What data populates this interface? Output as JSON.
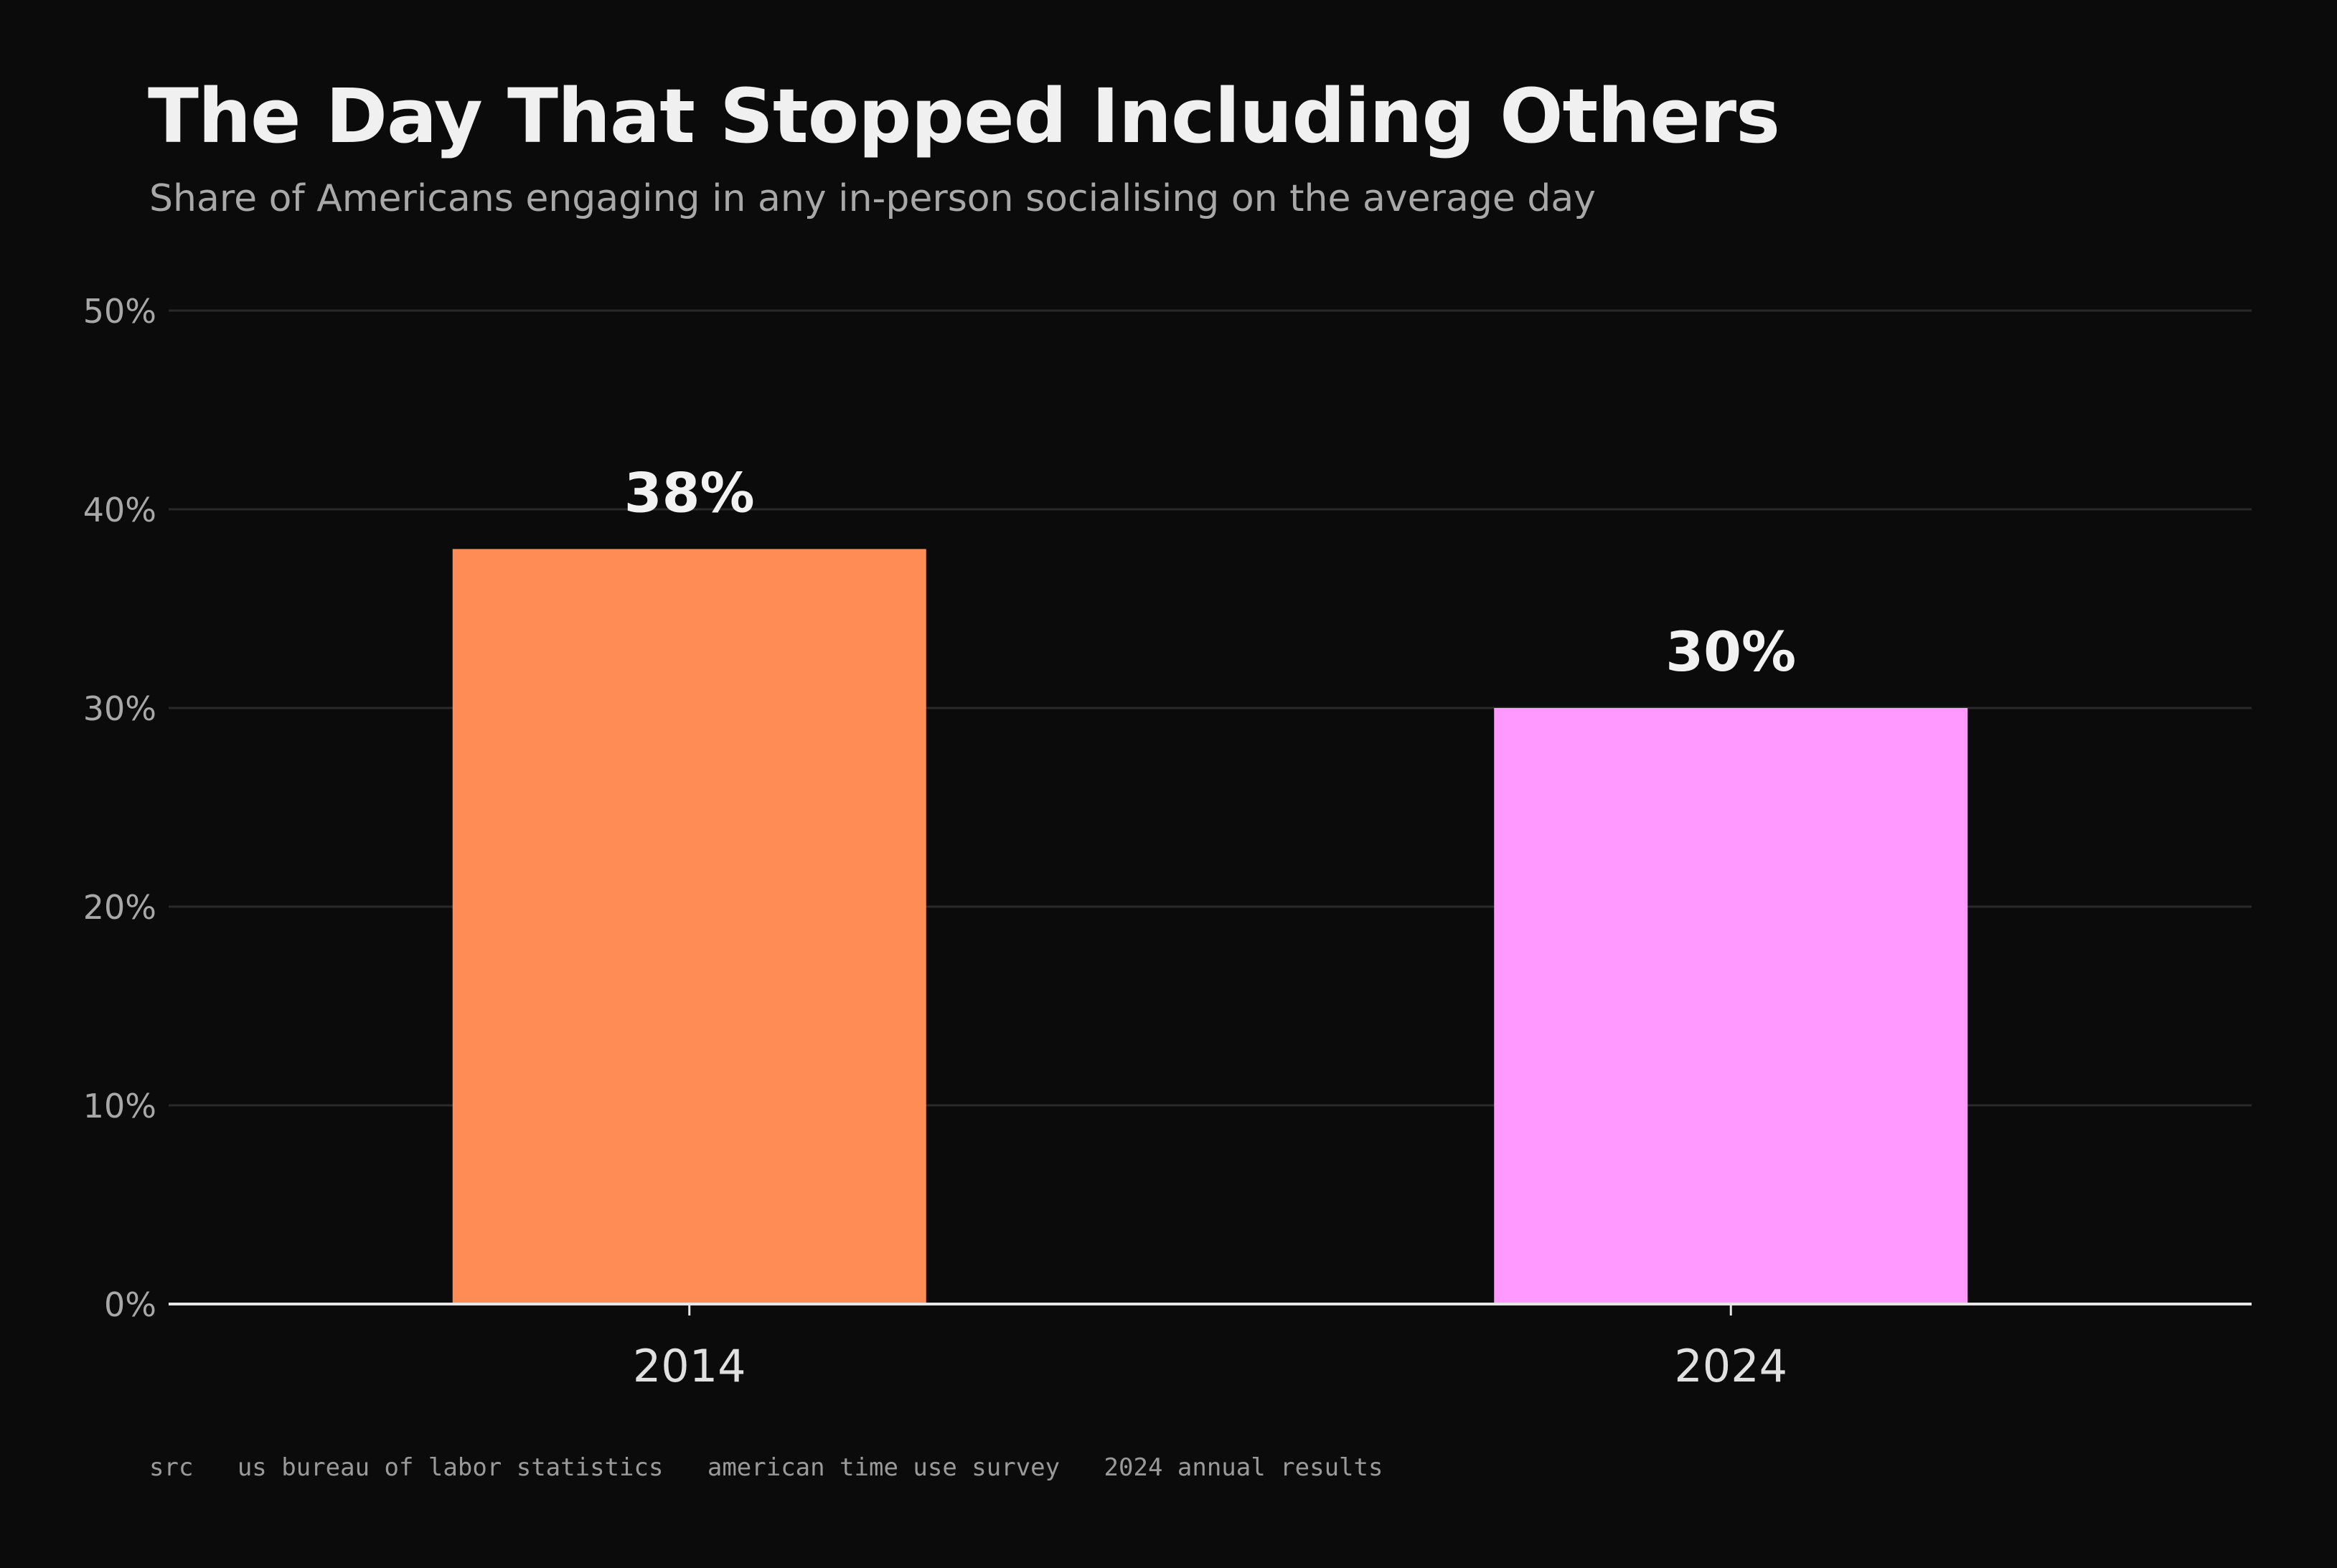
{
  "header": {
    "title": "The Day That Stopped Including Others",
    "subtitle": "Share of Americans engaging in any in-person socialising on the average day"
  },
  "footer": {
    "source": "src   us bureau of labor statistics   american time use survey   2024 annual results"
  },
  "colors": {
    "background": "#0b0b0b",
    "bar_2014": "#ff8c55",
    "bar_2024": "#ff99ff",
    "gridline": "#2a2a2a",
    "axis": "#e6e6e6",
    "tick_text": "#a8a8a8",
    "value_label": "#f2f2f2"
  },
  "chart_data": {
    "type": "bar",
    "title": "The Day That Stopped Including Others",
    "subtitle": "Share of Americans engaging in any in-person socialising on the average day",
    "categories": [
      "2014",
      "2024"
    ],
    "values": [
      38,
      30
    ],
    "value_labels": [
      "38%",
      "30%"
    ],
    "bar_colors": [
      "#ff8c55",
      "#ff99ff"
    ],
    "ylim": [
      0,
      50
    ],
    "yticks": [
      0,
      10,
      20,
      30,
      40,
      50
    ],
    "ytick_labels": [
      "0%",
      "10%",
      "20%",
      "30%",
      "40%",
      "50%"
    ],
    "xlabel": "",
    "ylabel": "",
    "grid": true,
    "legend": "none"
  }
}
